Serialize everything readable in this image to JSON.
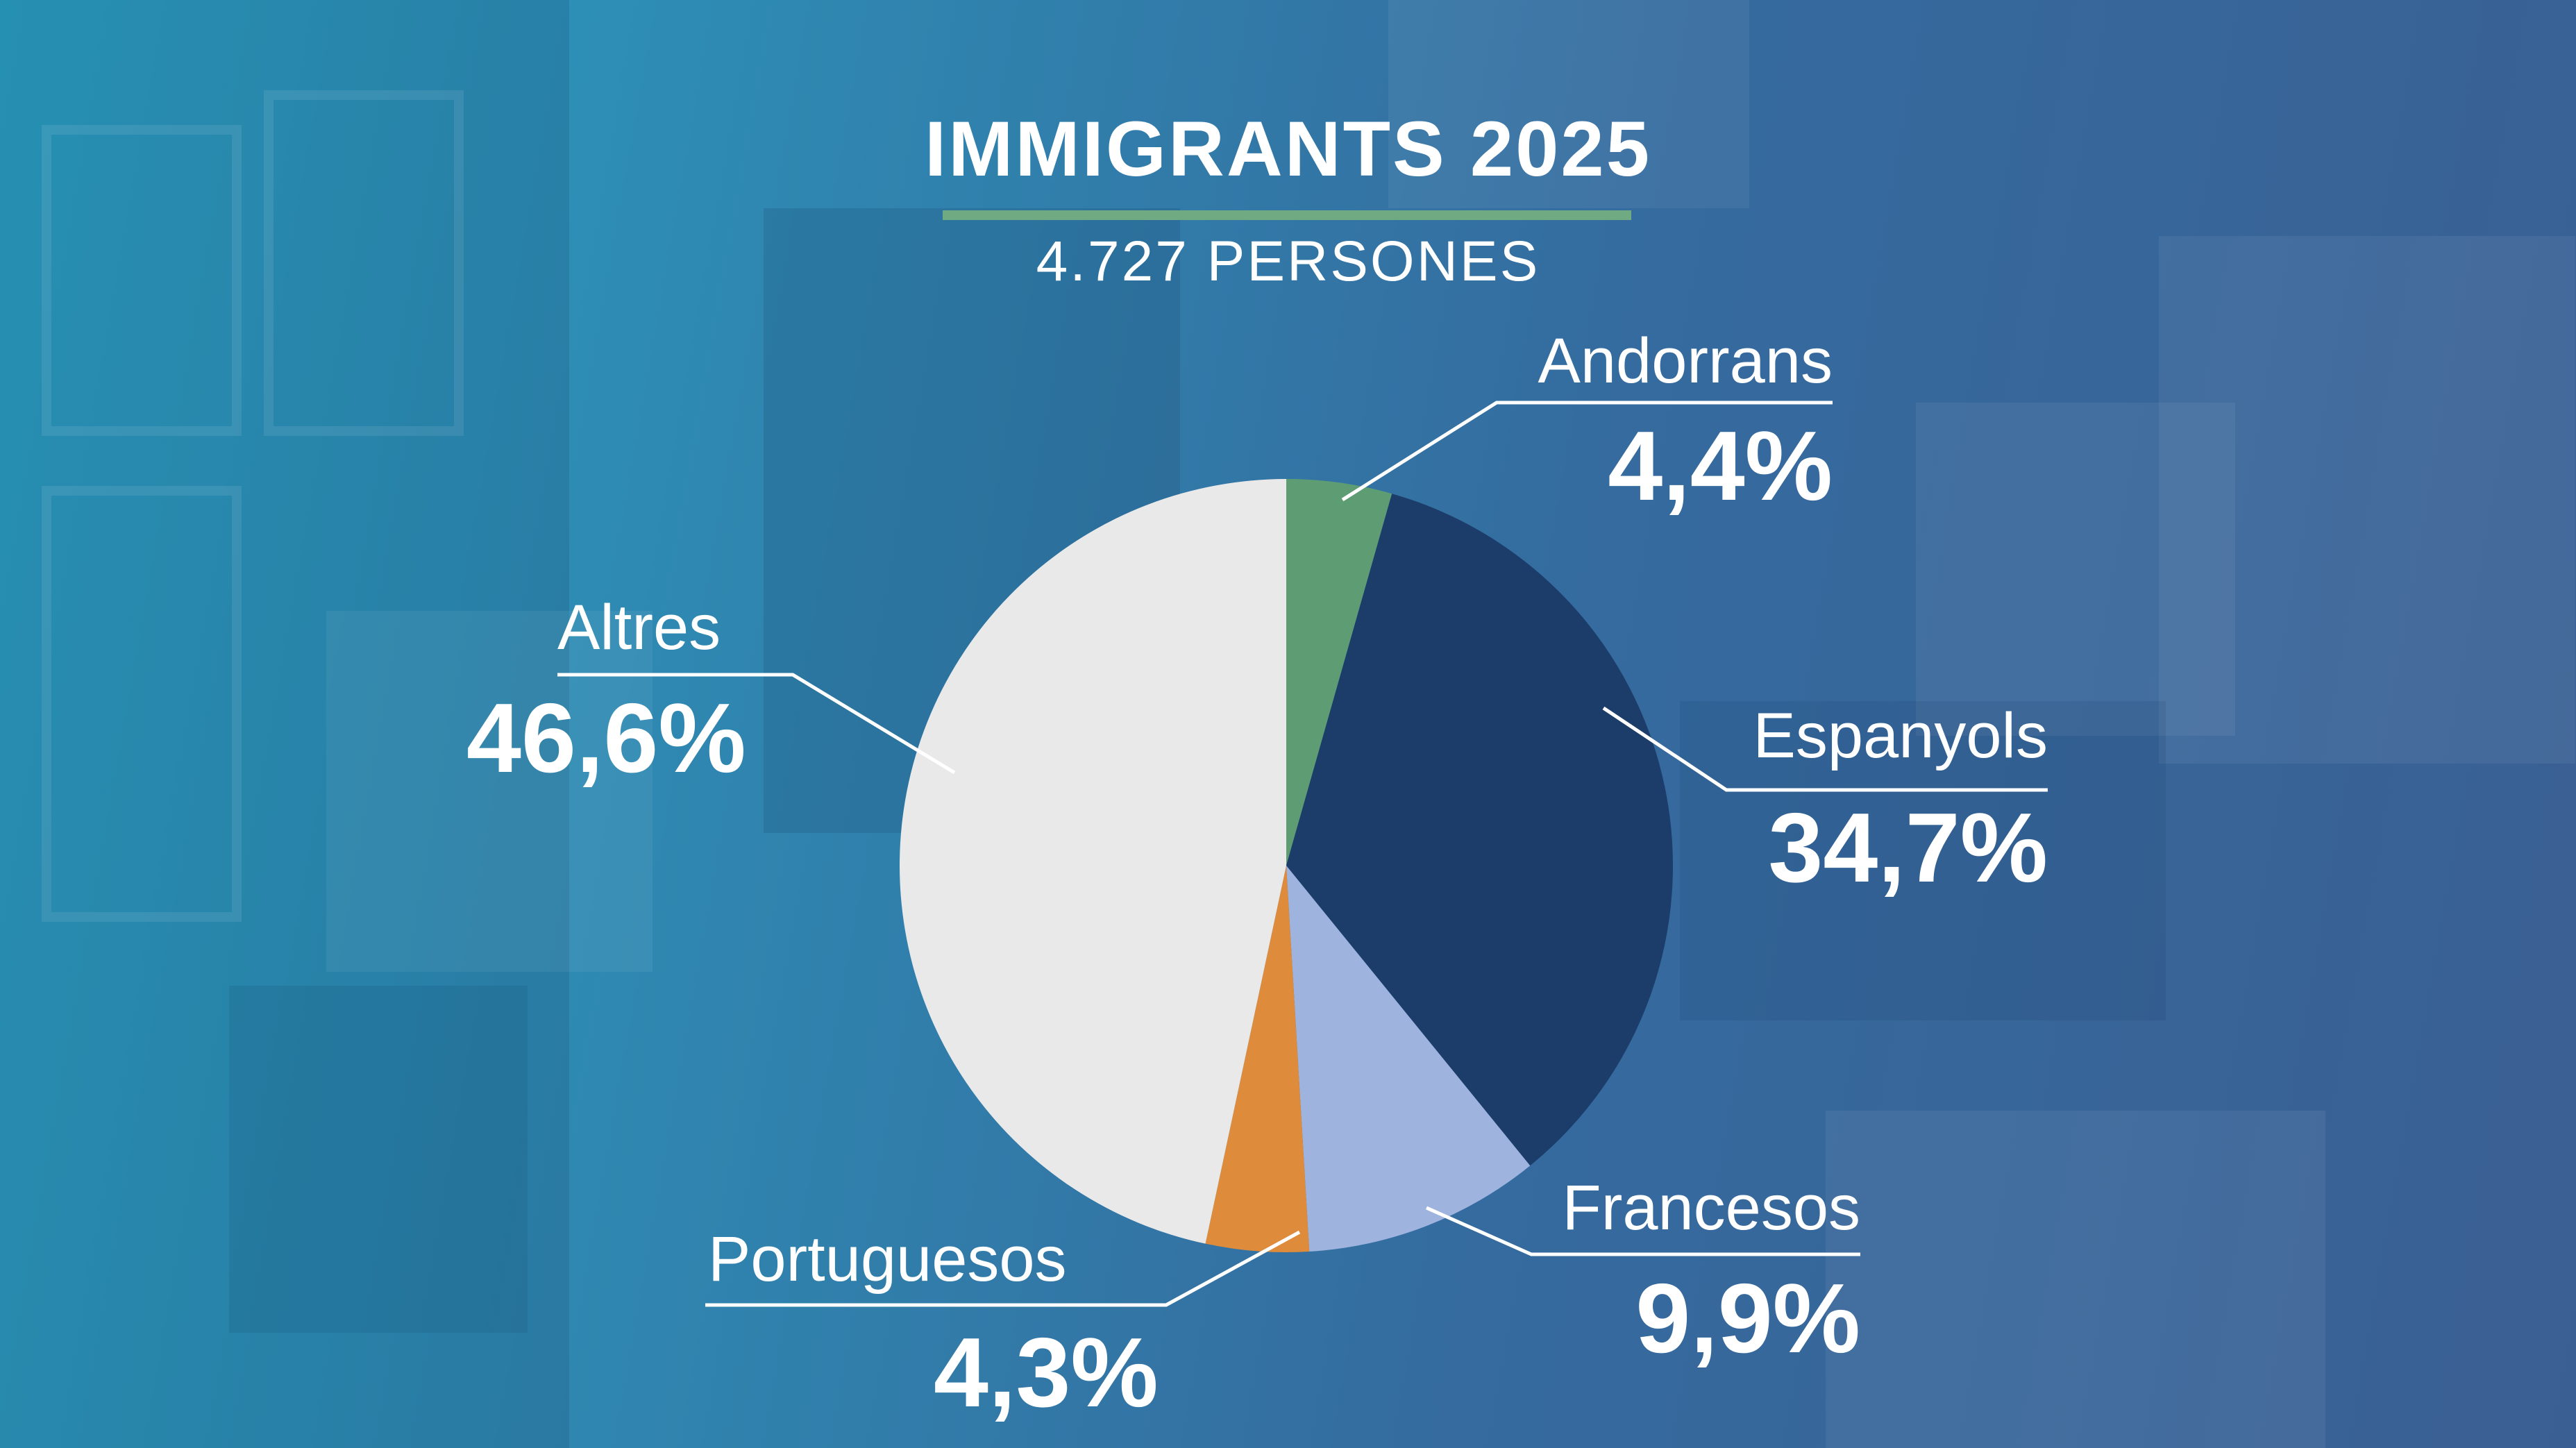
{
  "header": {
    "title": "IMMIGRANTS 2025",
    "subtitle": "4.727 PERSONES"
  },
  "colors": {
    "andorrans": "#5e9c74",
    "espanyols": "#1c3d69",
    "francesos": "#9fb3df",
    "portuguesos": "#de8c3c",
    "altres": "#e9e9e9",
    "accent_rule": "#6faa82"
  },
  "chart_data": {
    "type": "pie",
    "title": "IMMIGRANTS 2025",
    "subtitle": "4.727 PERSONES",
    "start_angle_deg": 0,
    "direction": "clockwise",
    "slices": [
      {
        "key": "andorrans",
        "name": "Andorrans",
        "value": 4.4,
        "label": "4,4%"
      },
      {
        "key": "espanyols",
        "name": "Espanyols",
        "value": 34.7,
        "label": "34,7%"
      },
      {
        "key": "francesos",
        "name": "Francesos",
        "value": 9.9,
        "label": "9,9%"
      },
      {
        "key": "portuguesos",
        "name": "Portuguesos",
        "value": 4.3,
        "label": "4,3%"
      },
      {
        "key": "altres",
        "name": "Altres",
        "value": 46.6,
        "label": "46,6%"
      }
    ]
  }
}
